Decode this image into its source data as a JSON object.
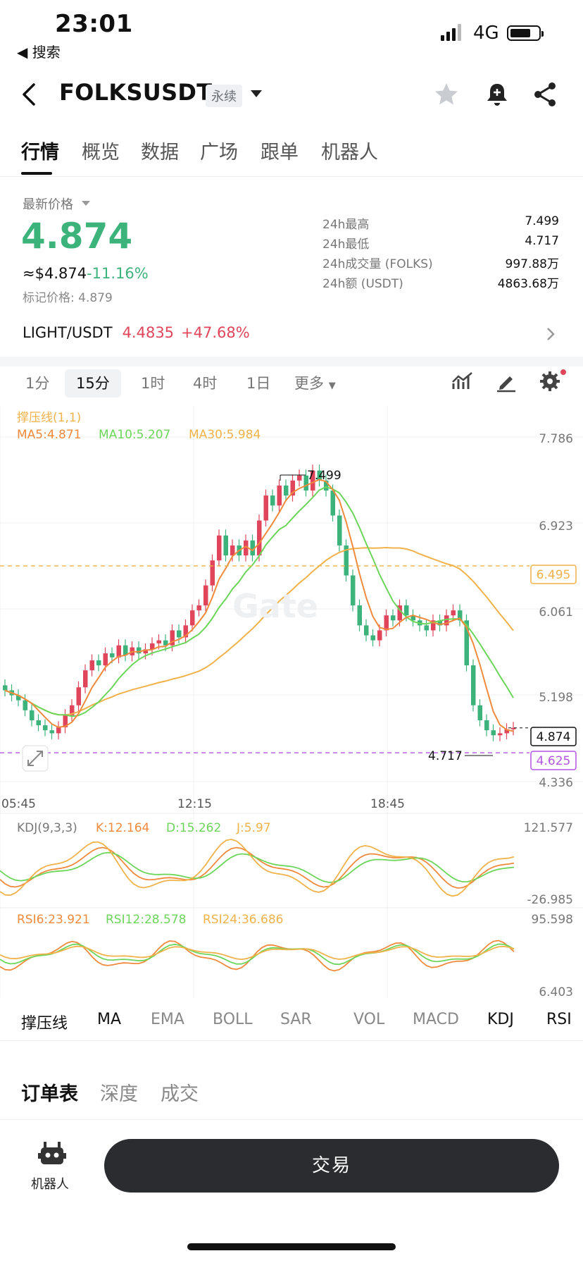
{
  "status_bar": {
    "time": "23:01",
    "back_app": "◀ 搜索",
    "network": "4G"
  },
  "header": {
    "pair": "FOLKSUSDT",
    "contract_type": "永续"
  },
  "tabs": [
    "行情",
    "概览",
    "数据",
    "广场",
    "跟单",
    "机器人"
  ],
  "price": {
    "label": "最新价格",
    "last": "4.874",
    "approx_usd": "≈$4.874",
    "change_pct": "-11.16%",
    "mark_label": "标记价格: 4.879"
  },
  "stats": [
    {
      "k": "24h最高",
      "v": "7.499"
    },
    {
      "k": "24h最低",
      "v": "4.717"
    },
    {
      "k": "24h成交量 (FOLKS)",
      "v": "997.88万"
    },
    {
      "k": "24h额 (USDT)",
      "v": "4863.68万"
    }
  ],
  "related": {
    "pair": "LIGHT/USDT",
    "price": "4.4835",
    "change": "+47.68%"
  },
  "intervals": [
    "1分",
    "15分",
    "1时",
    "4时",
    "1日",
    "更多"
  ],
  "active_interval": "15分",
  "chart_data": {
    "type": "candlestick",
    "indicator_title": "撑压线(1,1)",
    "ma_legend": {
      "ma5": "MA5:4.871",
      "ma10": "MA10:5.207",
      "ma30": "MA30:5.984"
    },
    "y_ticks": [
      "7.786",
      "6.923",
      "6.061",
      "5.198",
      "4.336"
    ],
    "y_range": [
      4.336,
      7.786
    ],
    "x_ticks": [
      "05:45",
      "12:15",
      "18:45"
    ],
    "resistance_label": "6.495",
    "support_label": "4.625",
    "current_label": "4.874",
    "high_marker": "7.499",
    "low_marker": "4.717",
    "watermark": "Gate",
    "kdj_legend": {
      "title": "KDJ(9,3,3)",
      "k": "K:12.164",
      "d": "D:15.262",
      "j": "J:5.97"
    },
    "kdj_ticks": [
      "121.577",
      "-26.985"
    ],
    "rsi_legend": {
      "r6": "RSI6:23.921",
      "r12": "RSI12:28.578",
      "r24": "RSI24:36.686"
    },
    "rsi_ticks": [
      "95.598",
      "6.403"
    ],
    "colors": {
      "up": "#e0455b",
      "down": "#3db37c",
      "ma5": "#f08a3c",
      "ma10": "#6cd65a",
      "ma30": "#f0b24a",
      "support": "#b255e0"
    }
  },
  "indicators": [
    "撑压线",
    "MA",
    "EMA",
    "BOLL",
    "SAR",
    "VOL",
    "MACD",
    "KDJ",
    "RSI"
  ],
  "order_tabs": [
    "订单表",
    "深度",
    "成交"
  ],
  "bottom": {
    "robot_label": "机器人",
    "trade": "交易"
  }
}
